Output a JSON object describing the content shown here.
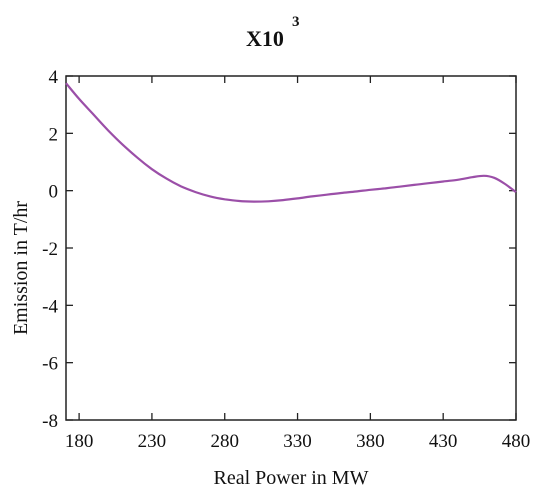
{
  "chart_data": {
    "type": "line",
    "multiplier": {
      "base": "X10",
      "exponent": "3"
    },
    "xlabel": "Real Power in MW",
    "ylabel": "Emission in T/hr",
    "xlim": [
      171,
      480
    ],
    "ylim": [
      -8,
      4
    ],
    "x_ticks": [
      180,
      230,
      280,
      330,
      380,
      430,
      480
    ],
    "y_ticks": [
      4,
      2,
      0,
      -2,
      -4,
      -6,
      -8
    ],
    "x_tick_labels": [
      "180",
      "230",
      "280",
      "330",
      "380",
      "430",
      "480"
    ],
    "y_tick_labels": [
      "4",
      "2",
      "0",
      "-2",
      "-4",
      "-6",
      "-8"
    ],
    "grid": false,
    "series": [
      {
        "color": "#9b4fa8",
        "x": [
          171,
          180,
          190,
          200,
          210,
          220,
          230,
          240,
          250,
          260,
          270,
          280,
          290,
          300,
          310,
          320,
          330,
          340,
          350,
          360,
          370,
          380,
          390,
          400,
          410,
          420,
          430,
          440,
          450,
          458,
          465,
          472,
          480
        ],
        "y": [
          3.75,
          3.2,
          2.65,
          2.1,
          1.6,
          1.15,
          0.75,
          0.42,
          0.15,
          -0.05,
          -0.2,
          -0.3,
          -0.36,
          -0.38,
          -0.37,
          -0.33,
          -0.27,
          -0.2,
          -0.14,
          -0.08,
          -0.03,
          0.03,
          0.08,
          0.14,
          0.2,
          0.26,
          0.32,
          0.38,
          0.47,
          0.52,
          0.45,
          0.25,
          -0.05
        ]
      }
    ]
  }
}
